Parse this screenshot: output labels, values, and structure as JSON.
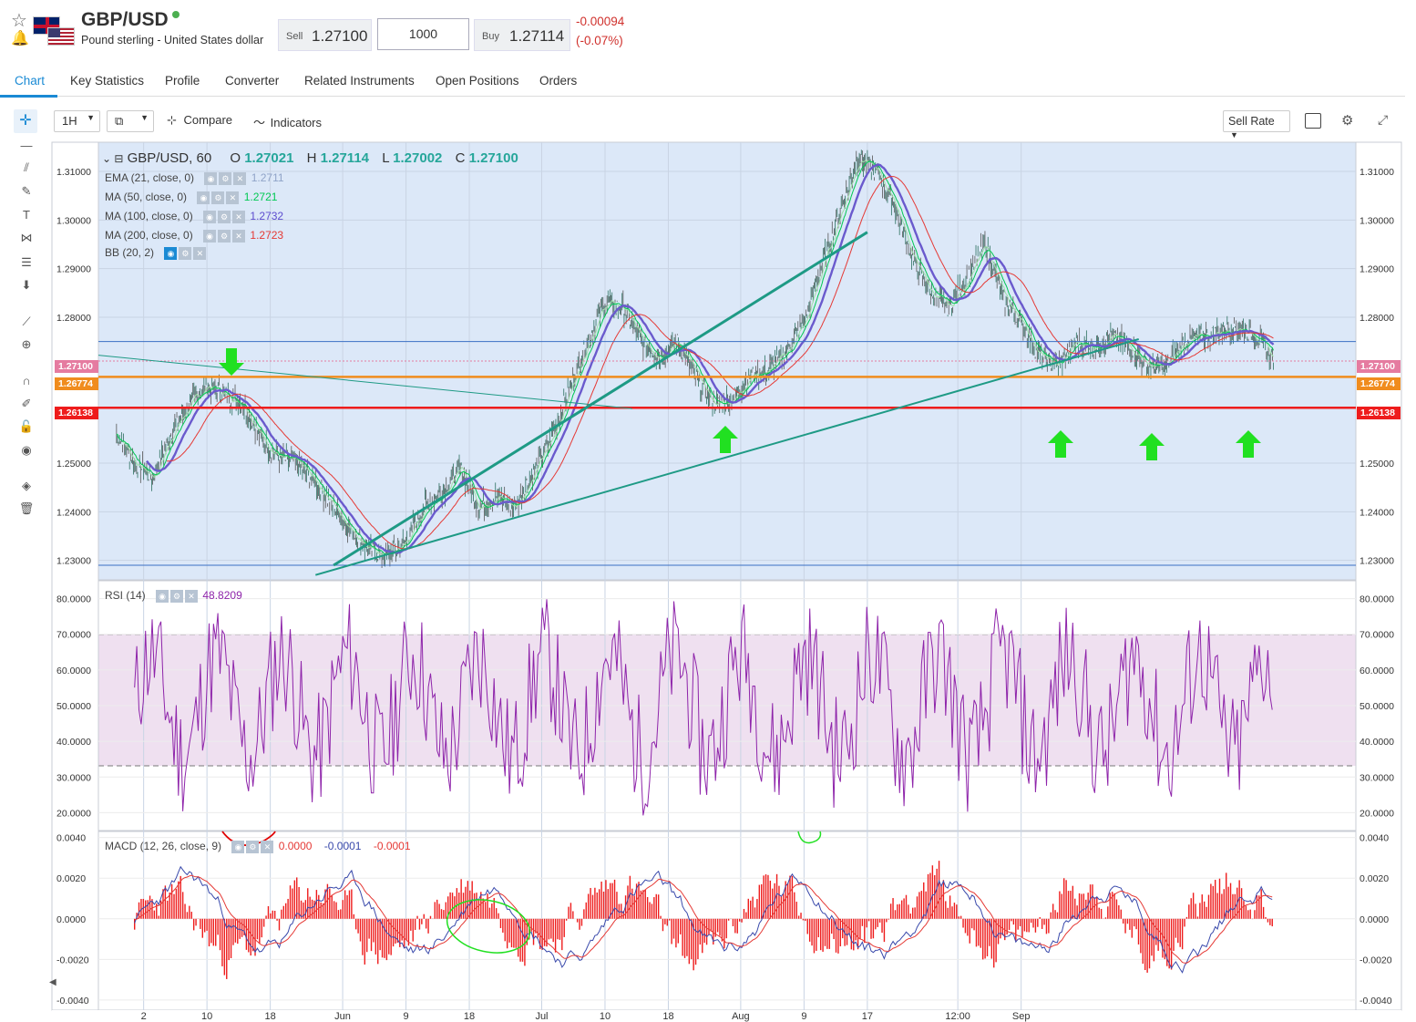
{
  "header": {
    "symbol": "GBP/USD",
    "description": "Pound sterling - United States dollar",
    "sell_label": "Sell",
    "sell_price": "1.27100",
    "quantity": "1000",
    "buy_label": "Buy",
    "buy_price": "1.27114",
    "change_abs": "-0.00094",
    "change_pct": "(-0.07%)"
  },
  "tabs": [
    {
      "label": "Chart",
      "active": true
    },
    {
      "label": "Key Statistics"
    },
    {
      "label": "Profile"
    },
    {
      "label": "Converter"
    },
    {
      "label": "Related Instruments"
    },
    {
      "label": "Open Positions"
    },
    {
      "label": "Orders"
    }
  ],
  "toolbar": {
    "interval": "1H",
    "compare_label": "Compare",
    "indicators_label": "Indicators",
    "rate_select": "Sell Rate"
  },
  "legend": {
    "symbol_interval": "GBP/USD, 60",
    "open_label": "O",
    "open": "1.27021",
    "high_label": "H",
    "high": "1.27114",
    "low_label": "L",
    "low": "1.27002",
    "close_label": "C",
    "close": "1.27100",
    "indicators": [
      {
        "label": "EMA (21, close, 0)",
        "value": "1.2711",
        "color": "#90a4c8"
      },
      {
        "label": "MA (50, close, 0)",
        "value": "1.2721",
        "color": "#00c853"
      },
      {
        "label": "MA (100, close, 0)",
        "value": "1.2732",
        "color": "#5c4ccf"
      },
      {
        "label": "MA (200, close, 0)",
        "value": "1.2723",
        "color": "#e53935"
      },
      {
        "label": "BB (20, 2)",
        "value": "",
        "color": "#1a8ad4"
      }
    ]
  },
  "price_tags": {
    "current": "1.27100",
    "resistance": "1.26774",
    "support": "1.26138"
  },
  "rsi": {
    "label": "RSI (14)",
    "value": "48.8209"
  },
  "macd": {
    "label": "MACD (12, 26, close, 9)",
    "v1": "0.0000",
    "v2": "-0.0001",
    "v3": "-0.0001"
  },
  "colors": {
    "accent": "#1a8ad4",
    "negative": "#d0312d",
    "main_bg": "#dce8f8",
    "rsi_band": "#efe0f0",
    "trendline": "#1e9a85",
    "resistance_line": "#f08c1e",
    "support_line": "#ee1c1c",
    "arrow": "#21e021"
  },
  "chart_data": [
    {
      "type": "candlestick",
      "title": "GBP/USD, 60",
      "y_ticks": [
        "1.31000",
        "1.30000",
        "1.29000",
        "1.28000",
        "1.25000",
        "1.24000",
        "1.23000"
      ],
      "x_ticks": [
        "2",
        "10",
        "18",
        "Jun",
        "9",
        "18",
        "Jul",
        "10",
        "18",
        "Aug",
        "9",
        "17",
        "12:00",
        "Sep"
      ],
      "ylim": [
        1.226,
        1.316
      ],
      "close_path": [
        [
          0,
          1.256
        ],
        [
          2,
          1.25
        ],
        [
          4,
          1.247
        ],
        [
          6,
          1.256
        ],
        [
          8,
          1.262
        ],
        [
          10,
          1.266
        ],
        [
          12,
          1.264
        ],
        [
          14,
          1.262
        ],
        [
          16,
          1.255
        ],
        [
          18,
          1.251
        ],
        [
          20,
          1.25
        ],
        [
          22,
          1.246
        ],
        [
          24,
          1.241
        ],
        [
          26,
          1.236
        ],
        [
          28,
          1.232
        ],
        [
          30,
          1.231
        ],
        [
          32,
          1.234
        ],
        [
          34,
          1.241
        ],
        [
          36,
          1.244
        ],
        [
          38,
          1.249
        ],
        [
          40,
          1.241
        ],
        [
          42,
          1.243
        ],
        [
          44,
          1.241
        ],
        [
          46,
          1.248
        ],
        [
          48,
          1.255
        ],
        [
          50,
          1.265
        ],
        [
          52,
          1.275
        ],
        [
          54,
          1.283
        ],
        [
          56,
          1.282
        ],
        [
          58,
          1.275
        ],
        [
          60,
          1.272
        ],
        [
          62,
          1.275
        ],
        [
          64,
          1.268
        ],
        [
          66,
          1.262
        ],
        [
          68,
          1.263
        ],
        [
          70,
          1.268
        ],
        [
          72,
          1.269
        ],
        [
          74,
          1.273
        ],
        [
          76,
          1.279
        ],
        [
          78,
          1.291
        ],
        [
          80,
          1.302
        ],
        [
          82,
          1.313
        ],
        [
          84,
          1.31
        ],
        [
          86,
          1.303
        ],
        [
          88,
          1.292
        ],
        [
          90,
          1.285
        ],
        [
          92,
          1.282
        ],
        [
          94,
          1.288
        ],
        [
          96,
          1.295
        ],
        [
          98,
          1.284
        ],
        [
          100,
          1.279
        ],
        [
          102,
          1.272
        ],
        [
          104,
          1.27
        ],
        [
          106,
          1.275
        ],
        [
          108,
          1.274
        ],
        [
          110,
          1.276
        ],
        [
          112,
          1.274
        ],
        [
          114,
          1.27
        ],
        [
          116,
          1.27
        ],
        [
          118,
          1.275
        ],
        [
          120,
          1.276
        ],
        [
          122,
          1.277
        ],
        [
          124,
          1.278
        ],
        [
          126,
          1.276
        ],
        [
          128,
          1.271
        ]
      ],
      "horizontal_levels": [
        1.271,
        1.26774,
        1.26138,
        1.275,
        1.229
      ],
      "trendlines": [
        {
          "from": [
            24,
            1.229
          ],
          "to": [
            83,
            1.2975
          ]
        },
        {
          "from": [
            -2,
            1.2722
          ],
          "to": [
            57,
            1.2612
          ]
        },
        {
          "from": [
            22,
            1.227
          ],
          "to": [
            113,
            1.2755
          ]
        }
      ]
    },
    {
      "type": "line",
      "title": "RSI (14)",
      "y_ticks": [
        "80.0000",
        "70.0000",
        "60.0000",
        "50.0000",
        "40.0000",
        "30.0000",
        "20.0000"
      ],
      "ylim": [
        15,
        85
      ],
      "band": [
        30,
        70
      ],
      "last": 48.8209
    },
    {
      "type": "line",
      "title": "MACD (12, 26, close, 9)",
      "y_ticks": [
        "0.0040",
        "0.0020",
        "0.0000",
        "-0.0020",
        "-0.0040"
      ],
      "ylim": [
        -0.0045,
        0.0043
      ]
    }
  ]
}
